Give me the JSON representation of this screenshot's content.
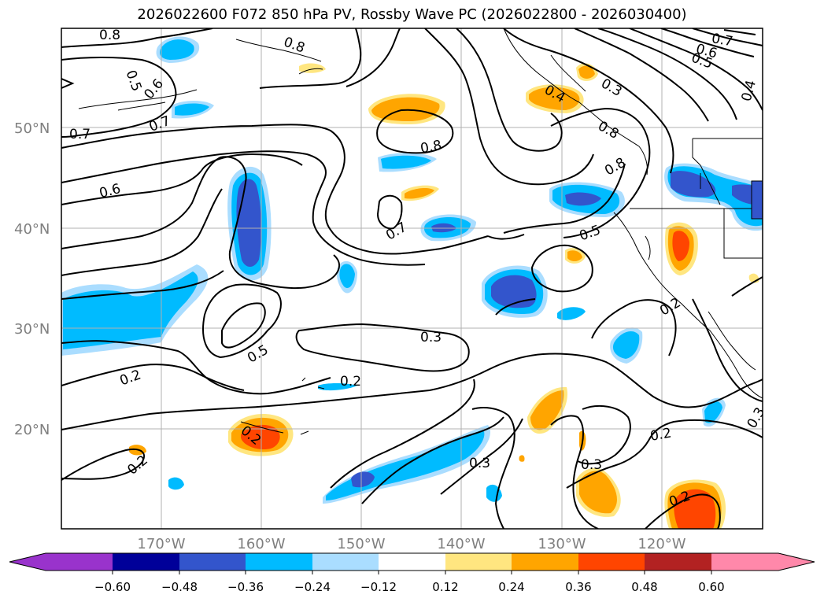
{
  "title": "2026022600 F072 850 hPa PV, Rossby Wave PC (2026022800 - 2026030400)",
  "lat_labels": [
    "50°N",
    "40°N",
    "30°N",
    "20°N"
  ],
  "lon_labels": [
    "170°W",
    "160°W",
    "150°W",
    "140°W",
    "130°W",
    "120°W"
  ],
  "contour_labels": [
    "0.8",
    "0.5",
    "0.6",
    "0.7",
    "0.7",
    "0.6",
    "0.8",
    "0.8",
    "0.8",
    "0.7",
    "0.6",
    "0.5",
    "0.4",
    "0.3",
    "0.4",
    "0.8",
    "0.7",
    "0.5",
    "0.2",
    "0.5",
    "0.3",
    "0.2",
    "0.2",
    "0.2",
    "0.3",
    "0.3",
    "0.2",
    "0.2",
    "0.3",
    "0.2"
  ],
  "colorbar": {
    "ticks": [
      "−0.60",
      "−0.48",
      "−0.36",
      "−0.24",
      "−0.12",
      "0.12",
      "0.24",
      "0.36",
      "0.48",
      "0.60"
    ],
    "colors": [
      "#9933cc",
      "#000099",
      "#3355cc",
      "#00bbff",
      "#aaddff",
      "#ffffff",
      "#ffe680",
      "#ffa500",
      "#ff4500",
      "#b22222",
      "#ff88aa"
    ]
  },
  "fill_colors": {
    "neg_light": "#aaddff",
    "neg_mid": "#00bbff",
    "neg_dark": "#3355cc",
    "pos_light": "#ffe680",
    "pos_mid": "#ffa500",
    "pos_dark": "#ff4500"
  }
}
